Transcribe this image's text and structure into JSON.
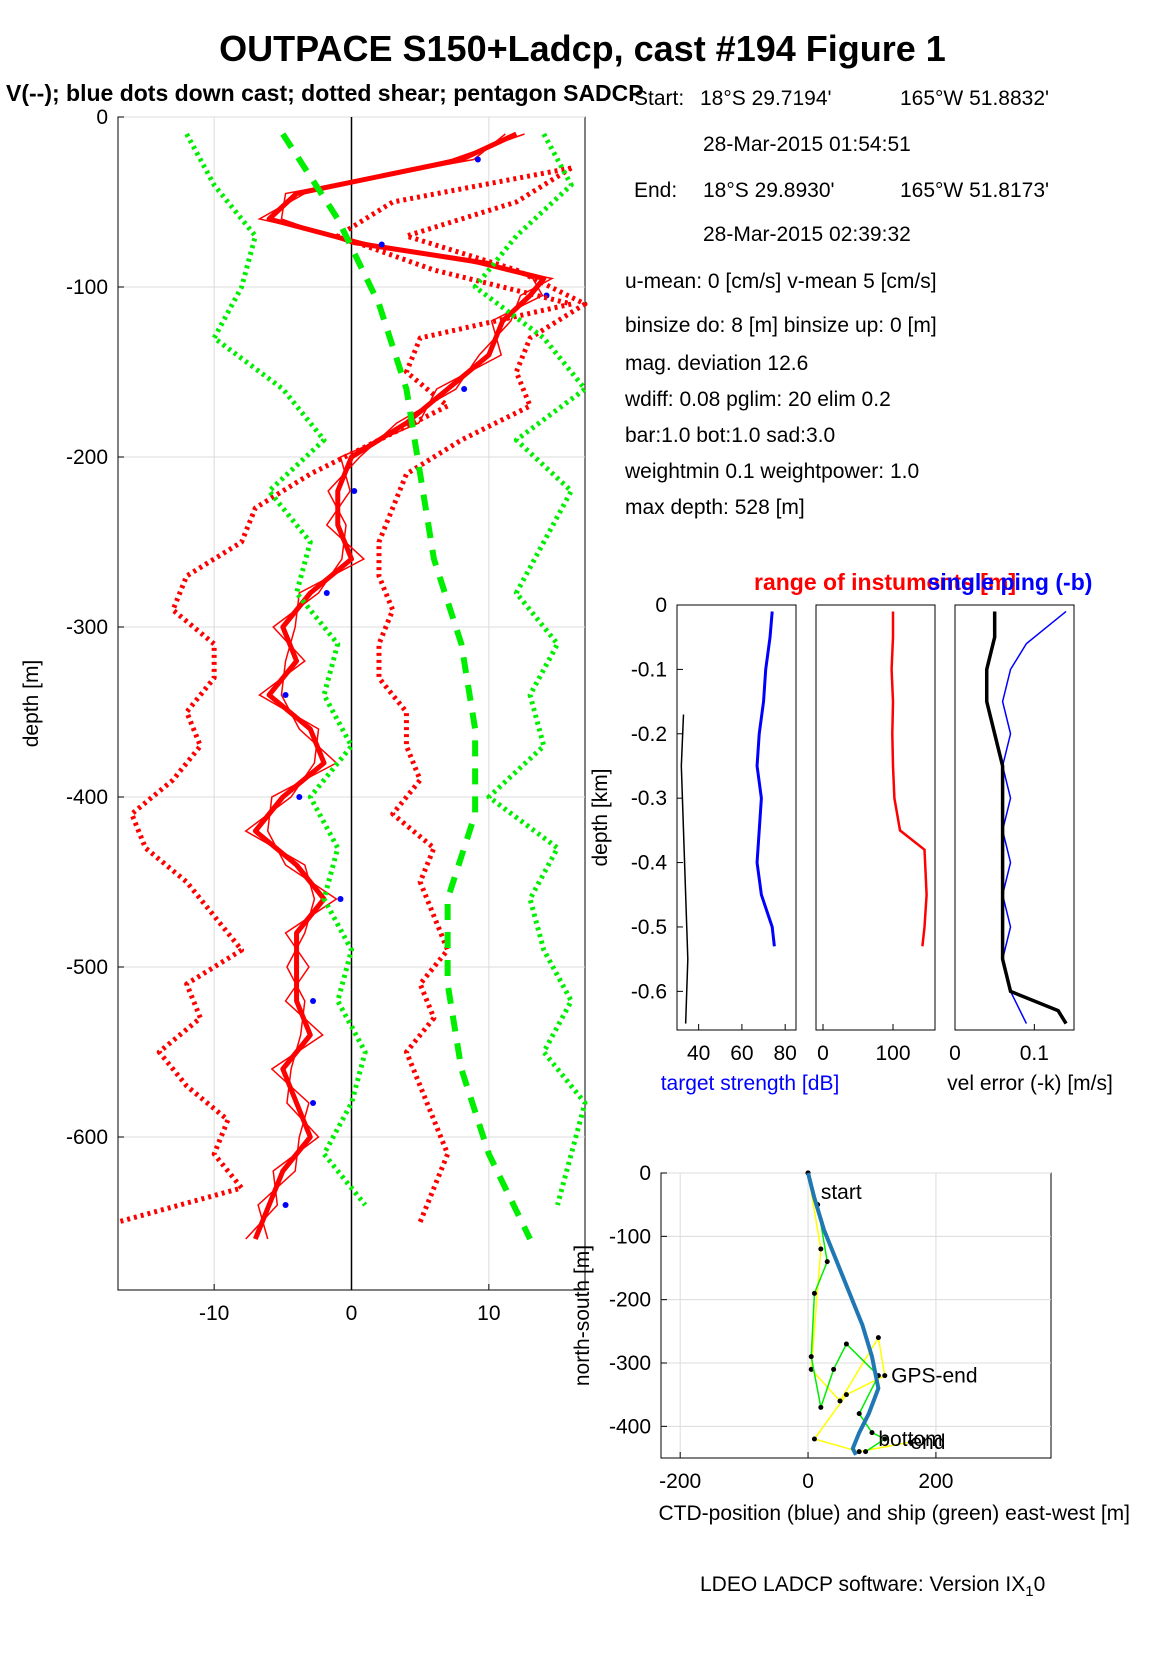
{
  "title": "OUTPACE S150+Ladcp, cast #194  Figure 1",
  "subtitle": "V(--); blue dots down cast; dotted shear; pentagon SADCP",
  "info": {
    "start_label": "Start:",
    "start_lat": "18°S 29.7194'",
    "start_lon": "165°W 51.8832'",
    "start_time": "28-Mar-2015 01:54:51",
    "end_label": "End:",
    "end_lat": "18°S 29.8930'",
    "end_lon": "165°W 51.8173'",
    "end_time": "28-Mar-2015 02:39:32",
    "means": "u-mean:   0 [cm/s]    v-mean   5 [cm/s]",
    "binsize": "binsize do: 8 [m]  binsize up:  0 [m]",
    "magdev": "mag. deviation 12.6",
    "wdiff": "wdiff: 0.08  pglim: 20  elim 0.2",
    "bar": "  bar:1.0 bot:1.0 sad:3.0",
    "weight": "weightmin 0.1  weightpower: 1.0",
    "maxdepth": "max depth: 528 [m]"
  },
  "footer": "LDEO LADCP software: Version IX",
  "footer_sub": "1",
  "footer_end": "0",
  "colors": {
    "red": "#ff0000",
    "green": "#00ee00",
    "blue": "#0000ff",
    "ctd": "#1f77b4",
    "yellow": "#ffff00",
    "black": "#000000"
  },
  "chart_data": [
    {
      "type": "line",
      "xlabel": "",
      "ylabel": "depth [m]",
      "xlim": [
        -17,
        17
      ],
      "ylim": [
        -690,
        0
      ],
      "xticks": [
        -10,
        0,
        10
      ],
      "yticks": [
        0,
        -100,
        -200,
        -300,
        -400,
        -500,
        -600
      ],
      "grid": true,
      "series": [
        {
          "color": "red",
          "style": "solid-thick",
          "depth": [
            -10,
            -25,
            -45,
            -60,
            -75,
            -85,
            -95,
            -105,
            -120,
            -140,
            -160,
            -180,
            -200,
            -220,
            -240,
            -260,
            -280,
            -300,
            -320,
            -340,
            -360,
            -380,
            -400,
            -420,
            -440,
            -460,
            -480,
            -500,
            -520,
            -540,
            -560,
            -580,
            -600,
            -620,
            -640,
            -660
          ],
          "values": [
            12,
            8,
            -4,
            -6,
            1,
            9,
            14,
            13,
            11,
            10,
            7,
            4,
            0,
            -1,
            -1,
            0,
            -3,
            -5,
            -4,
            -6,
            -3,
            -2,
            -5,
            -7,
            -4,
            -2,
            -4,
            -4,
            -4,
            -3,
            -5,
            -4,
            -3,
            -5,
            -6,
            -7
          ]
        },
        {
          "color": "red",
          "style": "dotted-thick",
          "depth": [
            -30,
            -50,
            -70,
            -90,
            -110,
            -130,
            -150,
            -170,
            -190,
            -210,
            -230,
            -250,
            -270,
            -290,
            -310,
            -330,
            -350,
            -370,
            -390,
            -410,
            -430,
            -450,
            -470,
            -490,
            -510,
            -530,
            -550,
            -570,
            -590,
            -610,
            -630,
            -650
          ],
          "values": [
            16,
            3,
            -1,
            6,
            16,
            5,
            4,
            7,
            2,
            -3,
            -7,
            -8,
            -12,
            -13,
            -10,
            -10,
            -12,
            -11,
            -13,
            -16,
            -15,
            -12,
            -10,
            -8,
            -12,
            -11,
            -14,
            -12,
            -9,
            -10,
            -8,
            -17
          ]
        },
        {
          "color": "red",
          "style": "dotted-thick",
          "depth": [
            -30,
            -50,
            -70,
            -90,
            -110,
            -130,
            -150,
            -170,
            -190,
            -210,
            -230,
            -250,
            -270,
            -290,
            -310,
            -330,
            -350,
            -370,
            -390,
            -410,
            -430,
            -450,
            -470,
            -490,
            -510,
            -530,
            -550,
            -570,
            -590,
            -610,
            -630,
            -650
          ],
          "values": [
            16,
            12,
            4,
            12,
            17,
            13,
            12,
            13,
            8,
            4,
            3,
            2,
            2,
            3,
            2,
            2,
            4,
            4,
            5,
            3,
            6,
            5,
            6,
            7,
            5,
            6,
            4,
            5,
            6,
            7,
            6,
            5
          ]
        },
        {
          "color": "green",
          "style": "dotted-thick",
          "depth": [
            -10,
            -40,
            -70,
            -100,
            -130,
            -160,
            -190,
            -220,
            -250,
            -280,
            -310,
            -340,
            -370,
            -400,
            -430,
            -460,
            -490,
            -520,
            -550,
            -580,
            -610,
            -640
          ],
          "values": [
            -12,
            -10,
            -7,
            -8,
            -10,
            -5,
            -2,
            -6,
            -3,
            -4,
            -1,
            -2,
            0,
            -3,
            -1,
            -2,
            0,
            -1,
            1,
            0,
            -2,
            1
          ]
        },
        {
          "color": "green",
          "style": "dotted-thick",
          "depth": [
            -10,
            -40,
            -70,
            -100,
            -130,
            -160,
            -190,
            -220,
            -250,
            -280,
            -310,
            -340,
            -370,
            -400,
            -430,
            -460,
            -490,
            -520,
            -550,
            -580,
            -610,
            -640
          ],
          "values": [
            14,
            16,
            12,
            9,
            14,
            17,
            12,
            16,
            14,
            12,
            15,
            13,
            14,
            10,
            15,
            13,
            14,
            16,
            14,
            17,
            16,
            15
          ]
        },
        {
          "color": "green",
          "style": "dashed-thick",
          "depth": [
            -10,
            -60,
            -110,
            -160,
            -210,
            -260,
            -310,
            -360,
            -410,
            -460,
            -510,
            -560,
            -610,
            -660
          ],
          "values": [
            -5,
            -1,
            2,
            4,
            5,
            6,
            8,
            9,
            9,
            7,
            7,
            8,
            10,
            13
          ]
        }
      ]
    },
    {
      "type": "line",
      "xlabel": "target strength [dB]",
      "ylabel": "depth [km]",
      "xlim": [
        30,
        85
      ],
      "ylim": [
        -0.66,
        0
      ],
      "xticks": [
        40,
        60,
        80
      ],
      "yticks": [
        0,
        -0.1,
        -0.2,
        -0.3,
        -0.4,
        -0.5,
        -0.6
      ],
      "series": [
        {
          "color": "blue",
          "depth": [
            -0.01,
            -0.05,
            -0.1,
            -0.15,
            -0.2,
            -0.25,
            -0.3,
            -0.35,
            -0.4,
            -0.45,
            -0.5,
            -0.53
          ],
          "values": [
            74,
            73,
            71,
            70,
            68,
            67,
            69,
            68,
            67,
            69,
            74,
            75
          ]
        },
        {
          "color": "black",
          "depth": [
            -0.17,
            -0.25,
            -0.35,
            -0.45,
            -0.55,
            -0.65
          ],
          "values": [
            33,
            32,
            33,
            34,
            35,
            34
          ]
        }
      ]
    },
    {
      "type": "line",
      "title": "range of instuments [m]",
      "xlabel": "",
      "xlim": [
        -10,
        160
      ],
      "ylim": [
        -0.66,
        0
      ],
      "xticks": [
        0,
        100
      ],
      "series": [
        {
          "color": "red",
          "depth": [
            -0.01,
            -0.05,
            -0.1,
            -0.15,
            -0.2,
            -0.25,
            -0.3,
            -0.35,
            -0.38,
            -0.45,
            -0.5,
            -0.53
          ],
          "values": [
            100,
            100,
            98,
            100,
            99,
            100,
            102,
            110,
            145,
            148,
            145,
            142
          ]
        }
      ]
    },
    {
      "type": "line",
      "title": "single ping (-b)",
      "xlabel": "vel error (-k) [m/s]",
      "xlim": [
        0,
        0.15
      ],
      "ylim": [
        -0.66,
        0
      ],
      "xticks": [
        0,
        0.1
      ],
      "series": [
        {
          "color": "blue",
          "depth": [
            -0.01,
            -0.03,
            -0.06,
            -0.1,
            -0.15,
            -0.2,
            -0.25,
            -0.3,
            -0.35,
            -0.4,
            -0.45,
            -0.5,
            -0.55,
            -0.6,
            -0.65
          ],
          "values": [
            0.14,
            0.12,
            0.09,
            0.07,
            0.06,
            0.07,
            0.06,
            0.07,
            0.06,
            0.07,
            0.06,
            0.07,
            0.06,
            0.07,
            0.09
          ]
        },
        {
          "color": "black",
          "depth": [
            -0.01,
            -0.05,
            -0.1,
            -0.15,
            -0.2,
            -0.25,
            -0.3,
            -0.35,
            -0.4,
            -0.45,
            -0.5,
            -0.55,
            -0.6,
            -0.63,
            -0.65
          ],
          "values": [
            0.05,
            0.05,
            0.04,
            0.04,
            0.05,
            0.06,
            0.06,
            0.06,
            0.06,
            0.06,
            0.06,
            0.06,
            0.07,
            0.13,
            0.14
          ]
        }
      ]
    },
    {
      "type": "line",
      "xlabel": "CTD-position (blue) and ship (green) east-west [m]",
      "ylabel": "north-south [m]",
      "xlim": [
        -230,
        380
      ],
      "ylim": [
        -450,
        0
      ],
      "xticks": [
        -200,
        0,
        200
      ],
      "yticks": [
        0,
        -100,
        -200,
        -300,
        -400
      ],
      "grid": true,
      "labels": [
        "start",
        "GPS-end",
        "bottom",
        "end"
      ],
      "series": [
        {
          "color": "ctd",
          "x": [
            0,
            10,
            25,
            45,
            65,
            85,
            100,
            110,
            95,
            80,
            70,
            75
          ],
          "y": [
            0,
            -40,
            -90,
            -140,
            -190,
            -240,
            -290,
            -340,
            -380,
            -410,
            -435,
            -445
          ]
        },
        {
          "color": "green",
          "x": [
            0,
            15,
            30,
            10,
            5,
            20,
            40,
            60,
            110,
            80,
            100,
            120,
            90
          ],
          "y": [
            0,
            -50,
            -140,
            -190,
            -290,
            -370,
            -310,
            -270,
            -320,
            -380,
            -410,
            -420,
            -440
          ]
        },
        {
          "color": "yellow",
          "x": [
            0,
            20,
            5,
            50,
            110,
            120,
            60,
            10,
            80,
            160
          ],
          "y": [
            0,
            -120,
            -310,
            -360,
            -260,
            -320,
            -350,
            -420,
            -440,
            -425
          ]
        }
      ]
    }
  ]
}
